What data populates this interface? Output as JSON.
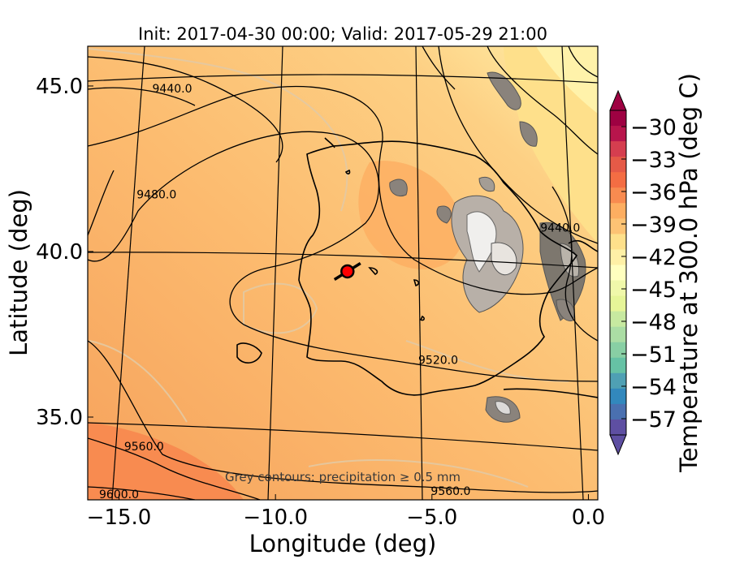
{
  "title": "Init: 2017-04-30 00:00; Valid: 2017-05-29 21:00",
  "axes": {
    "xlabel": "Longitude (deg)",
    "ylabel": "Latitude (deg)",
    "xlim": [
      -16,
      0.3
    ],
    "ylim": [
      32.5,
      46.2
    ],
    "xticks": [
      {
        "value": -15,
        "label": "−15.0"
      },
      {
        "value": -10,
        "label": "−10.0"
      },
      {
        "value": -5,
        "label": "−5.0"
      },
      {
        "value": 0,
        "label": "0.0"
      }
    ],
    "yticks": [
      {
        "value": 35,
        "label": "35.0"
      },
      {
        "value": 40,
        "label": "40.0"
      },
      {
        "value": 45,
        "label": "45.0"
      }
    ]
  },
  "annotation": "Grey contours: precipitation ≥ 0.5 mm",
  "colorbar": {
    "label": "Temperature at 300.0 hPa (deg C)",
    "min": -58.5,
    "max": -28.5,
    "tick_values": [
      -30,
      -33,
      -36,
      -39,
      -42,
      -45,
      -48,
      -51,
      -54,
      -57
    ],
    "tick_labels": [
      "−30",
      "−33",
      "−36",
      "−39",
      "−42",
      "−45",
      "−48",
      "−51",
      "−54",
      "−57"
    ],
    "colors_top_to_bottom": [
      "#9e0142",
      "#b8154c",
      "#d53e4f",
      "#e55a47",
      "#f46d43",
      "#f88b50",
      "#fdae61",
      "#fdc374",
      "#fee08b",
      "#fef0a6",
      "#ffffbf",
      "#f0f8aa",
      "#e6f598",
      "#c7e9a0",
      "#abdda4",
      "#88cfa4",
      "#66c2a5",
      "#4fa0b4",
      "#3288bd",
      "#4a70b0",
      "#5e4fa2"
    ]
  },
  "contour_labels": [
    {
      "text": "9440.0",
      "lon": -13.3,
      "lat": 44.8
    },
    {
      "text": "9480.0",
      "lon": -13.8,
      "lat": 41.6
    },
    {
      "text": "9440.0",
      "lon": -0.9,
      "lat": 40.6
    },
    {
      "text": "9520.0",
      "lon": -4.8,
      "lat": 36.6
    },
    {
      "text": "9560.0",
      "lon": -14.2,
      "lat": 34.0
    },
    {
      "text": "9600.0",
      "lon": -15.0,
      "lat": 32.55
    },
    {
      "text": "9560.0",
      "lon": -4.4,
      "lat": 32.65
    }
  ],
  "chart_data": {
    "type": "map",
    "field": "Temperature at 300.0 hPa (deg C) with geopotential height contours",
    "marker": {
      "lon": -7.7,
      "lat": 39.4,
      "color": "#ff0000"
    },
    "geopotential_contours": [
      "9440.0",
      "9480.0",
      "9520.0",
      "9560.0",
      "9600.0"
    ],
    "precipitation_threshold": "≥ 0.5 mm"
  }
}
